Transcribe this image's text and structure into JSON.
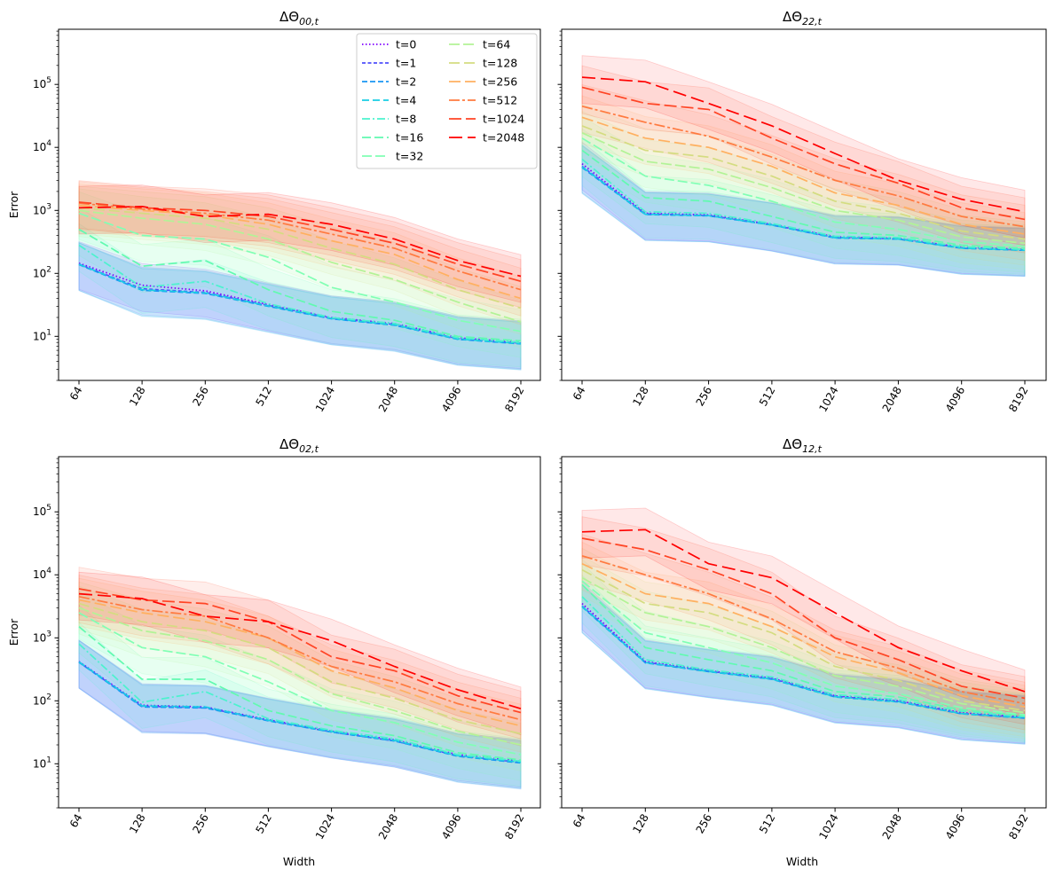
{
  "figure_title": "",
  "legend": {
    "entries": [
      {
        "label": "t=0",
        "color": "#7f00ff",
        "dash": "1.5,2.5"
      },
      {
        "label": "t=1",
        "color": "#4f4ffb",
        "dash": "4,2.5"
      },
      {
        "label": "t=2",
        "color": "#1996f3",
        "dash": "6,3"
      },
      {
        "label": "t=4",
        "color": "#18cde4",
        "dash": "8,4"
      },
      {
        "label": "t=8",
        "color": "#4cf2ce",
        "dash": "9,3,2,3"
      },
      {
        "label": "t=16",
        "color": "#61fab0",
        "dash": "10,4"
      },
      {
        "label": "t=32",
        "color": "#80ffb4",
        "dash": "11,4"
      },
      {
        "label": "t=64",
        "color": "#b2f396",
        "dash": "12,4"
      },
      {
        "label": "t=128",
        "color": "#d4dc80",
        "dash": "12,5"
      },
      {
        "label": "t=256",
        "color": "#ffb060",
        "dash": "13,5"
      },
      {
        "label": "t=512",
        "color": "#ff7a3f",
        "dash": "12,3,3,3"
      },
      {
        "label": "t=1024",
        "color": "#ff4424",
        "dash": "14,5"
      },
      {
        "label": "t=2048",
        "color": "#ff0000",
        "dash": "15,6"
      }
    ]
  },
  "chart_data": [
    {
      "type": "line",
      "title": "ΔΘ",
      "title_sub": "00,t",
      "xlabel": "",
      "ylabel": "Error",
      "yscale": "log",
      "ylim": [
        2,
        750000
      ],
      "categories": [
        "64",
        "128",
        "256",
        "512",
        "1024",
        "2048",
        "4096",
        "8192"
      ],
      "series": [
        {
          "name": "t=0",
          "values": [
            145,
            65,
            53,
            32,
            20,
            16,
            9.5,
            8
          ]
        },
        {
          "name": "t=1",
          "values": [
            140,
            57,
            50,
            31,
            19.5,
            15.5,
            9.2,
            7.8
          ]
        },
        {
          "name": "t=2",
          "values": [
            138,
            54,
            48,
            30,
            19,
            15,
            9,
            7.6
          ]
        },
        {
          "name": "t=4",
          "values": [
            140,
            55,
            49,
            30.5,
            19.2,
            15.2,
            9.1,
            7.7
          ]
        },
        {
          "name": "t=8",
          "values": [
            280,
            60,
            75,
            33,
            20,
            16,
            9.5,
            8
          ]
        },
        {
          "name": "t=16",
          "values": [
            500,
            130,
            160,
            55,
            25,
            18,
            10,
            8.5
          ]
        },
        {
          "name": "t=32",
          "values": [
            900,
            400,
            350,
            180,
            60,
            35,
            18,
            12
          ]
        },
        {
          "name": "t=64",
          "values": [
            1000,
            750,
            600,
            350,
            150,
            80,
            35,
            17
          ]
        },
        {
          "name": "t=128",
          "values": [
            1100,
            900,
            750,
            500,
            250,
            140,
            55,
            28
          ]
        },
        {
          "name": "t=256",
          "values": [
            1200,
            1000,
            850,
            600,
            330,
            200,
            80,
            40
          ]
        },
        {
          "name": "t=512",
          "values": [
            1300,
            1050,
            900,
            700,
            420,
            250,
            110,
            55
          ]
        },
        {
          "name": "t=1024",
          "values": [
            1350,
            1100,
            1000,
            800,
            500,
            300,
            140,
            75
          ]
        },
        {
          "name": "t=2048",
          "values": [
            1100,
            1150,
            800,
            870,
            600,
            350,
            160,
            90
          ]
        }
      ]
    },
    {
      "type": "line",
      "title": "ΔΘ",
      "title_sub": "22,t",
      "xlabel": "",
      "ylabel": "",
      "yscale": "log",
      "ylim": [
        2,
        750000
      ],
      "categories": [
        "64",
        "128",
        "256",
        "512",
        "1024",
        "2048",
        "4096",
        "8192"
      ],
      "series": [
        {
          "name": "t=0",
          "values": [
            5500,
            900,
            850,
            600,
            380,
            360,
            260,
            240
          ]
        },
        {
          "name": "t=1",
          "values": [
            5000,
            880,
            830,
            590,
            370,
            355,
            255,
            235
          ]
        },
        {
          "name": "t=2",
          "values": [
            4800,
            860,
            820,
            585,
            365,
            350,
            250,
            232
          ]
        },
        {
          "name": "t=4",
          "values": [
            4900,
            870,
            825,
            588,
            368,
            352,
            252,
            234
          ]
        },
        {
          "name": "t=8",
          "values": [
            6500,
            950,
            900,
            620,
            390,
            370,
            265,
            240
          ]
        },
        {
          "name": "t=16",
          "values": [
            9000,
            1600,
            1400,
            800,
            450,
            400,
            280,
            250
          ]
        },
        {
          "name": "t=32",
          "values": [
            14000,
            3500,
            2500,
            1400,
            650,
            500,
            320,
            270
          ]
        },
        {
          "name": "t=64",
          "values": [
            17000,
            6000,
            4500,
            2300,
            1000,
            700,
            380,
            300
          ]
        },
        {
          "name": "t=128",
          "values": [
            22000,
            9000,
            7000,
            3500,
            1400,
            900,
            470,
            350
          ]
        },
        {
          "name": "t=256",
          "values": [
            30000,
            14000,
            10000,
            5000,
            1900,
            1200,
            600,
            420
          ]
        },
        {
          "name": "t=512",
          "values": [
            45000,
            25000,
            15000,
            7000,
            3000,
            1700,
            800,
            550
          ]
        },
        {
          "name": "t=1024",
          "values": [
            90000,
            50000,
            40000,
            14000,
            5500,
            2700,
            1100,
            720
          ]
        },
        {
          "name": "t=2048",
          "values": [
            130000,
            110000,
            50000,
            22000,
            8000,
            3000,
            1500,
            950
          ]
        }
      ]
    },
    {
      "type": "line",
      "title": "ΔΘ",
      "title_sub": "02,t",
      "xlabel": "Width",
      "ylabel": "Error",
      "yscale": "log",
      "ylim": [
        2,
        750000
      ],
      "categories": [
        "64",
        "128",
        "256",
        "512",
        "1024",
        "2048",
        "4096",
        "8192"
      ],
      "series": [
        {
          "name": "t=0",
          "values": [
            420,
            85,
            80,
            50,
            33,
            24,
            14,
            11
          ]
        },
        {
          "name": "t=1",
          "values": [
            410,
            82,
            78,
            49,
            32,
            23,
            13.5,
            10.5
          ]
        },
        {
          "name": "t=2",
          "values": [
            410,
            80,
            77,
            48,
            32,
            23,
            13.2,
            10.3
          ]
        },
        {
          "name": "t=4",
          "values": [
            415,
            83,
            80,
            49,
            32.5,
            23.5,
            13.5,
            10.6
          ]
        },
        {
          "name": "t=8",
          "values": [
            800,
            95,
            140,
            52,
            34,
            25,
            14,
            11
          ]
        },
        {
          "name": "t=16",
          "values": [
            1500,
            220,
            220,
            70,
            40,
            28,
            15,
            11.5
          ]
        },
        {
          "name": "t=32",
          "values": [
            2500,
            700,
            500,
            200,
            70,
            45,
            22,
            14
          ]
        },
        {
          "name": "t=64",
          "values": [
            3000,
            1300,
            900,
            450,
            130,
            70,
            33,
            20
          ]
        },
        {
          "name": "t=128",
          "values": [
            3500,
            1800,
            1300,
            700,
            200,
            110,
            50,
            30
          ]
        },
        {
          "name": "t=256",
          "values": [
            4000,
            2500,
            1800,
            1000,
            300,
            160,
            70,
            40
          ]
        },
        {
          "name": "t=512",
          "values": [
            4500,
            2800,
            2200,
            1000,
            350,
            200,
            90,
            50
          ]
        },
        {
          "name": "t=1024",
          "values": [
            6000,
            4000,
            3500,
            1800,
            500,
            300,
            120,
            65
          ]
        },
        {
          "name": "t=2048",
          "values": [
            5000,
            4200,
            2200,
            1800,
            900,
            350,
            150,
            75
          ]
        }
      ]
    },
    {
      "type": "line",
      "title": "ΔΘ",
      "title_sub": "12,t",
      "xlabel": "Width",
      "ylabel": "",
      "yscale": "log",
      "ylim": [
        2,
        750000
      ],
      "categories": [
        "64",
        "128",
        "256",
        "512",
        "1024",
        "2048",
        "4096",
        "8192"
      ],
      "series": [
        {
          "name": "t=0",
          "values": [
            3500,
            420,
            300,
            230,
            120,
            100,
            65,
            55
          ]
        },
        {
          "name": "t=1",
          "values": [
            3200,
            410,
            295,
            225,
            118,
            98,
            63,
            54
          ]
        },
        {
          "name": "t=2",
          "values": [
            3100,
            400,
            290,
            220,
            115,
            96,
            62,
            53
          ]
        },
        {
          "name": "t=4",
          "values": [
            3150,
            405,
            292,
            222,
            116,
            97,
            62.5,
            53.5
          ]
        },
        {
          "name": "t=8",
          "values": [
            4500,
            450,
            310,
            240,
            125,
            105,
            68,
            56
          ]
        },
        {
          "name": "t=16",
          "values": [
            7000,
            700,
            450,
            300,
            140,
            115,
            72,
            58
          ]
        },
        {
          "name": "t=32",
          "values": [
            8000,
            1200,
            700,
            400,
            170,
            130,
            78,
            60
          ]
        },
        {
          "name": "t=64",
          "values": [
            9000,
            2500,
            1500,
            700,
            250,
            170,
            90,
            65
          ]
        },
        {
          "name": "t=128",
          "values": [
            12000,
            3500,
            2500,
            1200,
            350,
            210,
            100,
            70
          ]
        },
        {
          "name": "t=256",
          "values": [
            15000,
            5000,
            3500,
            1500,
            500,
            280,
            120,
            80
          ]
        },
        {
          "name": "t=512",
          "values": [
            20000,
            10000,
            5000,
            2000,
            600,
            330,
            140,
            90
          ]
        },
        {
          "name": "t=1024",
          "values": [
            38000,
            25000,
            12000,
            5000,
            1000,
            450,
            170,
            110
          ]
        },
        {
          "name": "t=2048",
          "values": [
            48000,
            52000,
            15000,
            9000,
            2500,
            700,
            300,
            140
          ]
        }
      ]
    }
  ]
}
